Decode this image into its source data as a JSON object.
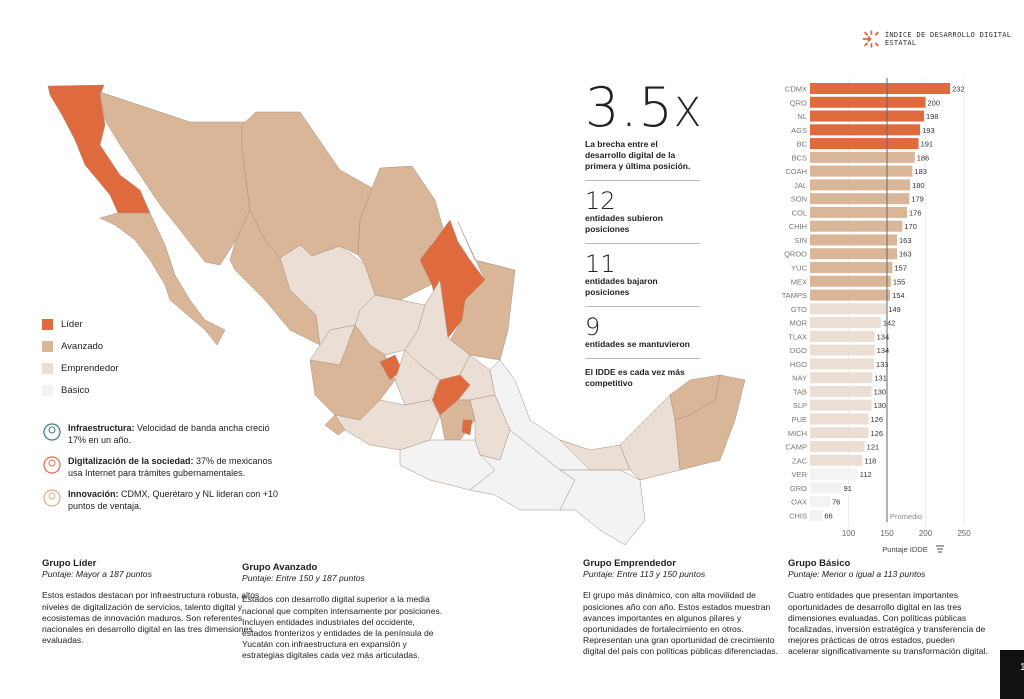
{
  "header": {
    "title": "ÍNDICE DE DESARROLLO DIGITAL ESTATAL"
  },
  "colors": {
    "lider": "#DE6A3E",
    "avanzado": "#D9B698",
    "emprendedor": "#EADED5",
    "basico": "#F3F3F3",
    "avanzado_stroke": "#9a8070"
  },
  "legend": [
    {
      "label": "Líder",
      "group": "lider"
    },
    {
      "label": "Avanzado",
      "group": "avanzado"
    },
    {
      "label": "Emprendedor",
      "group": "emprendedor"
    },
    {
      "label": "Básico",
      "group": "basico"
    }
  ],
  "facts": [
    {
      "icon": "globe-network-icon",
      "title": "Infraestructura:",
      "text": " Velocidad de banda ancha creció 17% en un año."
    },
    {
      "icon": "person-laptop-icon",
      "title": "Digitalización de la sociedad:",
      "text": " 37% de mexicanos usa Internet para trámites gubernamentales."
    },
    {
      "icon": "innovation-hands-icon",
      "title": "Innovación:",
      "text": " CDMX, Querétaro y NL lideran con +10 puntos de ventaja."
    }
  ],
  "stats": {
    "gap_value": "3.5",
    "gap_unit": "X",
    "gap_text": "La brecha entre el desarrollo digital de la primera y última posición.",
    "items": [
      {
        "value": "12",
        "text": "entidades subieron posiciones"
      },
      {
        "value": "11",
        "text": "entidades bajaron posiciones"
      },
      {
        "value": "9",
        "text": "entidades se mantuvieron"
      }
    ],
    "closing": "El IDDE es cada vez más competitivo"
  },
  "chart_data": {
    "type": "bar",
    "orientation": "horizontal",
    "categories": [
      "CDMX",
      "QRO",
      "NL",
      "AGS",
      "BC",
      "BCS",
      "COAH",
      "JAL",
      "SON",
      "COL",
      "CHIH",
      "SIN",
      "QROO",
      "YUC",
      "MEX",
      "TAMPS",
      "GTO",
      "MOR",
      "TLAX",
      "DGO",
      "HGO",
      "NAY",
      "TAB",
      "SLP",
      "PUE",
      "MICH",
      "CAMP",
      "ZAC",
      "VER",
      "GRO",
      "OAX",
      "CHIS"
    ],
    "values": [
      232,
      200,
      198,
      193,
      191,
      186,
      183,
      180,
      179,
      176,
      170,
      163,
      163,
      157,
      155,
      154,
      149,
      142,
      134,
      134,
      133,
      131,
      130,
      130,
      126,
      126,
      121,
      118,
      112,
      91,
      76,
      66
    ],
    "groups": [
      "lider",
      "lider",
      "lider",
      "lider",
      "lider",
      "avanzado",
      "avanzado",
      "avanzado",
      "avanzado",
      "avanzado",
      "avanzado",
      "avanzado",
      "avanzado",
      "avanzado",
      "avanzado",
      "avanzado",
      "emprendedor",
      "emprendedor",
      "emprendedor",
      "emprendedor",
      "emprendedor",
      "emprendedor",
      "emprendedor",
      "emprendedor",
      "emprendedor",
      "emprendedor",
      "emprendedor",
      "emprendedor",
      "basico",
      "basico",
      "basico",
      "basico"
    ],
    "xlim": [
      50,
      260
    ],
    "xticks": [
      100,
      150,
      200,
      250
    ],
    "xlabel": "Puntaje IDDE",
    "reference_line": {
      "value": 150,
      "label": "Promedio"
    },
    "grid": true
  },
  "groups_text": [
    {
      "title": "Grupo Líder",
      "range": "Puntaje: Mayor a 187 puntos",
      "text": "Estos estados destacan por infraestructura robusta, altos niveles de digitalización de servicios, talento digital y ecosistemas de innovación maduros. Son referentes nacionales en desarrollo digital en las tres dimensiones evaluadas."
    },
    {
      "title": "Grupo Avanzado",
      "range": "Puntaje: Entre 150 y 187 puntos",
      "text": "Estados con desarrollo digital superior a la media nacional que compiten intensamente por posiciones. Incluyen entidades industriales del occidente, estados fronterizos y entidades de la península de Yucatán con infraestructura en expansión y estrategias digitales cada vez más articuladas."
    },
    {
      "title": "Grupo Emprendedor",
      "range": "Puntaje: Entre 113 y 150 puntos",
      "text": "El grupo más dinámico, con alta movilidad de posiciones año con año. Estos estados muestran avances importantes en algunos pilares y oportunidades de fortalecimiento en otros. Representan una gran oportunidad de crecimiento digital del país con políticas públicas diferenciadas."
    },
    {
      "title": "Grupo Básico",
      "range": "Puntaje: Menor o igual a 113 puntos",
      "text": "Cuatro entidades que presentan importantes oportunidades de desarrollo digital en las tres dimensiones evaluadas. Con políticas públicas focalizadas, inversión estratégica y transferencia de mejores prácticas de otros estados, pueden acelerar significativamente su transformación digital."
    }
  ],
  "page_number": "1"
}
